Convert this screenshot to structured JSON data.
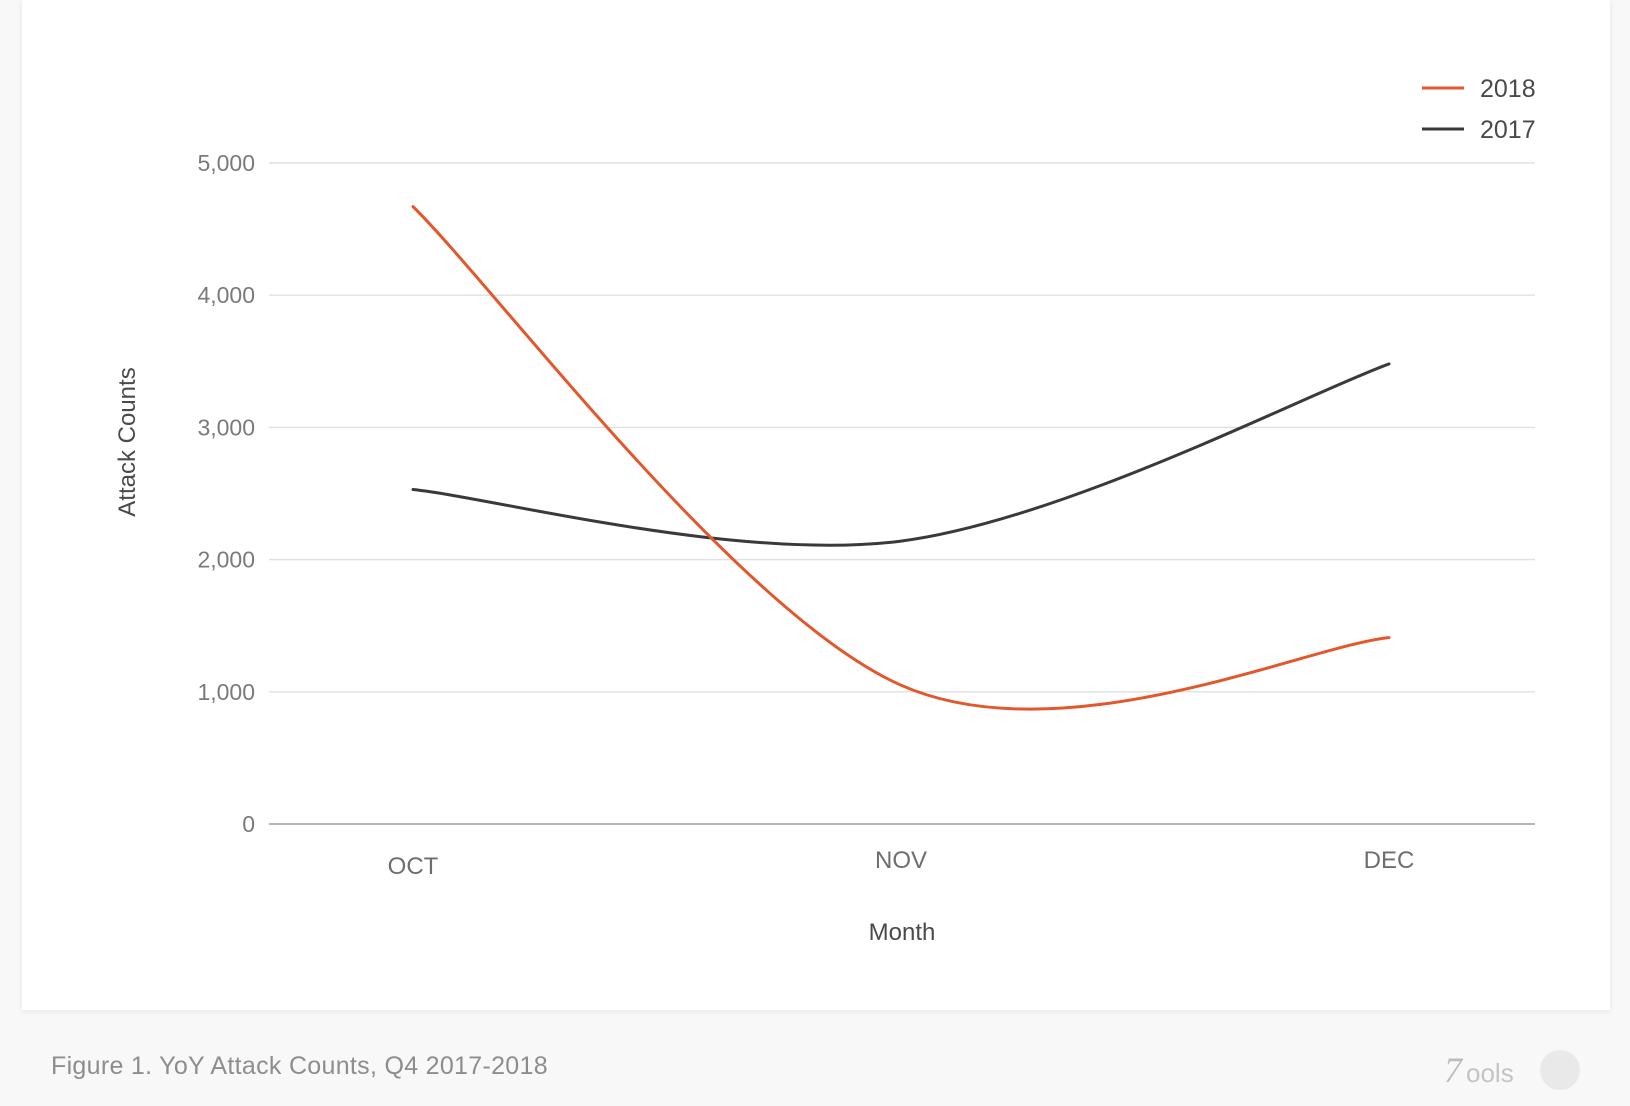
{
  "chart_data": {
    "type": "line",
    "categories": [
      "OCT",
      "NOV",
      "DEC"
    ],
    "series": [
      {
        "name": "2018",
        "values": [
          4670,
          1050,
          1410
        ],
        "color": "#e2582c"
      },
      {
        "name": "2017",
        "values": [
          2530,
          2140,
          3480
        ],
        "color": "#3a3a3a"
      }
    ],
    "xlabel": "Month",
    "ylabel": "Attack Counts",
    "ylim": [
      0,
      5000
    ],
    "yticks": [
      "0",
      "1,000",
      "2,000",
      "3,000",
      "4,000",
      "5,000"
    ],
    "ytick_values": [
      0,
      1000,
      2000,
      3000,
      4000,
      5000
    ],
    "grid": true,
    "legend_position": "top-right",
    "smooth": true
  },
  "caption": "Figure 1. YoY Attack Counts, Q4 2017-2018",
  "watermark": "Tools",
  "colors": {
    "grid": "#e0e0e0",
    "baseline": "#9e9e9e"
  }
}
